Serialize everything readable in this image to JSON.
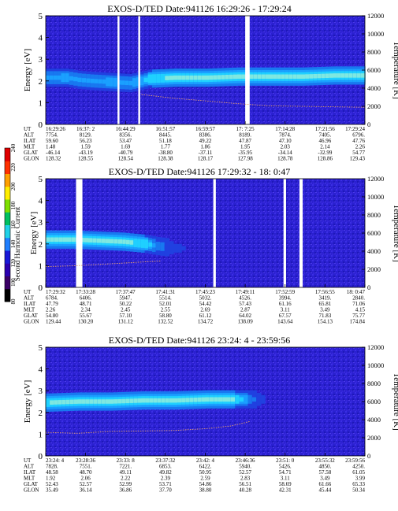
{
  "figure": {
    "colorbar": {
      "label": "Second Harmonic Current",
      "ticks": [
        "80",
        "100",
        "120",
        "140",
        "160",
        "180",
        "200",
        "220",
        "240"
      ],
      "colors": [
        "#000000",
        "#3a0066",
        "#2a00b0",
        "#1818d8",
        "#1f7fff",
        "#21d2e8",
        "#00c060",
        "#7fe000",
        "#ffee00",
        "#ffa000",
        "#ff3000",
        "#e00000"
      ]
    },
    "axis_labels": {
      "left": "Energy [eV]",
      "right": "Temperature [K]"
    },
    "orbit_param_labels": [
      "UT",
      "ALT",
      "ILAT",
      "MLT",
      "GLAT",
      "GLON"
    ]
  },
  "chart_data": [
    {
      "type": "heatmap",
      "title": "EXOS-D/TED   Date:941126   16:29:26 - 17:29:24",
      "ylabel": "Energy [eV]",
      "y2label": "Temperature [K]",
      "ylim": [
        0,
        5
      ],
      "yticks": [
        0,
        1,
        2,
        3,
        4,
        5
      ],
      "y2lim": [
        0,
        12000
      ],
      "y2ticks": [
        0,
        2000,
        4000,
        6000,
        8000,
        10000,
        12000
      ],
      "band": [
        {
          "x": 0.0,
          "energy": 2.15,
          "intensity": 0.55
        },
        {
          "x": 0.06,
          "energy": 2.15,
          "intensity": 0.6
        },
        {
          "x": 0.1,
          "energy": 2.05,
          "intensity": 0.55
        },
        {
          "x": 0.14,
          "energy": 2.0,
          "intensity": 0.55
        },
        {
          "x": 0.2,
          "energy": 1.95,
          "intensity": 0.6
        },
        {
          "x": 0.26,
          "energy": 1.9,
          "intensity": 0.55
        },
        {
          "x": 0.295,
          "energy": 2.0,
          "intensity": 0.7
        },
        {
          "x": 0.32,
          "energy": 2.1,
          "intensity": 0.85
        },
        {
          "x": 0.4,
          "energy": 2.15,
          "intensity": 0.95
        },
        {
          "x": 0.5,
          "energy": 2.15,
          "intensity": 1.0
        },
        {
          "x": 0.6,
          "energy": 2.2,
          "intensity": 1.0
        },
        {
          "x": 0.7,
          "energy": 2.2,
          "intensity": 1.0
        },
        {
          "x": 0.8,
          "energy": 2.2,
          "intensity": 1.0
        },
        {
          "x": 0.9,
          "energy": 2.25,
          "intensity": 1.0
        },
        {
          "x": 1.0,
          "energy": 2.25,
          "intensity": 1.0
        }
      ],
      "temperature_trace": [
        {
          "x": 0.3,
          "T": 3300
        },
        {
          "x": 0.4,
          "T": 2900
        },
        {
          "x": 0.5,
          "T": 2600
        },
        {
          "x": 0.6,
          "T": 2300
        },
        {
          "x": 0.7,
          "T": 2050
        },
        {
          "x": 0.8,
          "T": 2000
        },
        {
          "x": 0.9,
          "T": 1950
        },
        {
          "x": 1.0,
          "T": 1900
        }
      ],
      "data_gaps": [
        {
          "x": 0.225,
          "width": 0.006
        },
        {
          "x": 0.29,
          "width": 0.006
        },
        {
          "x": 0.625,
          "width": 0.014
        }
      ],
      "orbit_params": {
        "UT": [
          "16:29:26",
          "16:37: 2",
          "16:44:29",
          "16:51:57",
          "16:59:57",
          "17: 7:25",
          "17:14:28",
          "17:21:56",
          "17:29:24"
        ],
        "ALT": [
          "7754.",
          "8129.",
          "8356.",
          "8445.",
          "8386.",
          "8189.",
          "7874.",
          "7405.",
          "6796."
        ],
        "ILAT": [
          "59.60",
          "56.23",
          "53.47",
          "51.18",
          "49.22",
          "47.87",
          "47.10",
          "46.96",
          "47.76"
        ],
        "MLT": [
          "1.48",
          "1.59",
          "1.69",
          "1.77",
          "1.86",
          "1.95",
          "2.03",
          "2.14",
          "2.26"
        ],
        "GLAT": [
          "-46.14",
          "-43.19",
          "-40.79",
          "-38.80",
          "-37.11",
          "-35.95",
          "-34.14",
          "-32.99",
          "54.77"
        ],
        "GLON": [
          "128.32",
          "128.55",
          "128.54",
          "128.38",
          "128.17",
          "127.98",
          "128.78",
          "128.86",
          "129.43"
        ]
      }
    },
    {
      "type": "heatmap",
      "title": "EXOS-D/TED   Date:941126   17:29:32 - 18: 0:47",
      "ylabel": "Energy [eV]",
      "y2label": "Temperature [K]",
      "ylim": [
        0,
        5
      ],
      "yticks": [
        0,
        1,
        2,
        3,
        4,
        5
      ],
      "y2lim": [
        0,
        12000
      ],
      "y2ticks": [
        0,
        2000,
        4000,
        6000,
        8000,
        10000,
        12000
      ],
      "band": [
        {
          "x": 0.0,
          "energy": 2.2,
          "intensity": 1.0
        },
        {
          "x": 0.08,
          "energy": 2.2,
          "intensity": 1.0
        },
        {
          "x": 0.16,
          "energy": 2.15,
          "intensity": 0.95
        },
        {
          "x": 0.24,
          "energy": 2.1,
          "intensity": 0.95
        },
        {
          "x": 0.31,
          "energy": 2.0,
          "intensity": 0.85
        },
        {
          "x": 0.345,
          "energy": 1.9,
          "intensity": 0.45
        },
        {
          "x": 0.4,
          "energy": 1.8,
          "intensity": 0.15
        },
        {
          "x": 0.5,
          "energy": 1.8,
          "intensity": 0.0
        }
      ],
      "temperature_trace": [
        {
          "x": 0.0,
          "T": 2300
        },
        {
          "x": 0.1,
          "T": 2400
        },
        {
          "x": 0.2,
          "T": 2600
        },
        {
          "x": 0.3,
          "T": 2800
        },
        {
          "x": 0.36,
          "T": 2900
        }
      ],
      "data_gaps": [
        {
          "x": 0.095,
          "width": 0.02
        },
        {
          "x": 0.525,
          "width": 0.008
        },
        {
          "x": 0.745,
          "width": 0.008
        },
        {
          "x": 0.795,
          "width": 0.01
        }
      ],
      "orbit_params": {
        "UT": [
          "17:29:32",
          "17:33:28",
          "17:37:47",
          "17:41:31",
          "17:45:23",
          "17:49:11",
          "17:52:59",
          "17:56:55",
          "18: 0:47"
        ],
        "ALT": [
          "6784.",
          "6406.",
          "5947.",
          "5514.",
          "5032.",
          "4526.",
          "3994.",
          "3419.",
          "2840."
        ],
        "ILAT": [
          "47.79",
          "48.71",
          "50.22",
          "52.01",
          "54.42",
          "57.43",
          "61.16",
          "65.81",
          "71.06"
        ],
        "MLT": [
          "2.26",
          "2.34",
          "2.45",
          "2.55",
          "2.69",
          "2.87",
          "3.11",
          "3.49",
          "4.15"
        ],
        "GLAT": [
          "54.80",
          "55.67",
          "57.10",
          "58.80",
          "61.12",
          "64.02",
          "67.57",
          "71.83",
          "75.77"
        ],
        "GLON": [
          "129.44",
          "130.20",
          "131.12",
          "132.52",
          "134.72",
          "138.09",
          "143.64",
          "154.13",
          "174.84"
        ]
      }
    },
    {
      "type": "heatmap",
      "title": "EXOS-D/TED   Date:941126   23:24: 4 - 23:59:56",
      "ylabel": "Energy [eV]",
      "y2label": "Temperature [K]",
      "ylim": [
        0,
        5
      ],
      "yticks": [
        0,
        1,
        2,
        3,
        4,
        5
      ],
      "y2lim": [
        0,
        12000
      ],
      "y2ticks": [
        0,
        2000,
        4000,
        6000,
        8000,
        10000,
        12000
      ],
      "band": [
        {
          "x": 0.0,
          "energy": 2.45,
          "intensity": 0.9
        },
        {
          "x": 0.1,
          "energy": 2.5,
          "intensity": 1.0
        },
        {
          "x": 0.2,
          "energy": 2.5,
          "intensity": 1.0
        },
        {
          "x": 0.3,
          "energy": 2.55,
          "intensity": 1.0
        },
        {
          "x": 0.4,
          "energy": 2.55,
          "intensity": 1.0
        },
        {
          "x": 0.5,
          "energy": 2.6,
          "intensity": 1.0
        },
        {
          "x": 0.58,
          "energy": 2.6,
          "intensity": 0.95
        },
        {
          "x": 0.62,
          "energy": 2.6,
          "intensity": 0.6
        },
        {
          "x": 0.66,
          "energy": 2.6,
          "intensity": 0.2
        },
        {
          "x": 0.7,
          "energy": 2.6,
          "intensity": 0.0
        }
      ],
      "temperature_trace": [
        {
          "x": 0.0,
          "T": 2600
        },
        {
          "x": 0.1,
          "T": 2500
        },
        {
          "x": 0.2,
          "T": 2700
        },
        {
          "x": 0.3,
          "T": 2750
        },
        {
          "x": 0.4,
          "T": 2800
        },
        {
          "x": 0.5,
          "T": 3000
        },
        {
          "x": 0.58,
          "T": 3300
        },
        {
          "x": 0.64,
          "T": 3800
        }
      ],
      "data_gaps": [],
      "orbit_params": {
        "UT": [
          "23:24: 4",
          "23:28:36",
          "23:33: 8",
          "23:37:32",
          "23:42: 4",
          "23:46:36",
          "23:51: 0",
          "23:55:32",
          "23:59:56"
        ],
        "ALT": [
          "7828.",
          "7551.",
          "7221.",
          "6853.",
          "6422.",
          "5940.",
          "5426.",
          "4850.",
          "4250."
        ],
        "ILAT": [
          "48.58",
          "48.70",
          "49.11",
          "49.82",
          "50.95",
          "52.57",
          "54.71",
          "57.58",
          "61.05"
        ],
        "MLT": [
          "1.92",
          "2.06",
          "2.22",
          "2.39",
          "2.59",
          "2.83",
          "3.11",
          "3.49",
          "3.99"
        ],
        "GLAT": [
          "52.43",
          "52.57",
          "52.99",
          "53.71",
          "54.86",
          "56.51",
          "58.69",
          "61.66",
          "65.33"
        ],
        "GLON": [
          "35.49",
          "36.14",
          "36.86",
          "37.70",
          "38.80",
          "40.28",
          "42.31",
          "45.44",
          "50.34"
        ]
      }
    }
  ]
}
